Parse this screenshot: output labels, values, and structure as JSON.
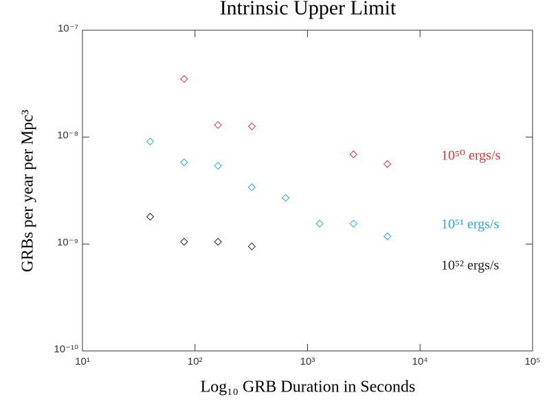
{
  "chart_data": {
    "type": "scatter",
    "title": "Intrinsic Upper Limit",
    "x_label": "Log₁₀ GRB Duration in Seconds",
    "y_label": "GRBs per year per Mpc³",
    "x_scale": "log",
    "y_scale": "log",
    "xlim": [
      10,
      100000
    ],
    "ylim": [
      1e-10,
      1e-07
    ],
    "xticks": [
      {
        "value": 10,
        "label": "10¹"
      },
      {
        "value": 100,
        "label": "10²"
      },
      {
        "value": 1000,
        "label": "10³"
      },
      {
        "value": 10000,
        "label": "10⁴"
      },
      {
        "value": 100000,
        "label": "10⁵"
      }
    ],
    "yticks": [
      {
        "value": 1e-10,
        "label": "10⁻¹⁰"
      },
      {
        "value": 1e-09,
        "label": "10⁻⁹"
      },
      {
        "value": 1e-08,
        "label": "10⁻⁸"
      },
      {
        "value": 1e-07,
        "label": "10⁻⁷"
      }
    ],
    "series": [
      {
        "name": "10⁵⁰ ergs/s",
        "color": "#e8312f",
        "x": [
          80,
          160,
          320,
          2560,
          5120
        ],
        "values": [
          3.5e-08,
          1.3e-08,
          1.26e-08,
          6.9e-09,
          5.6e-09
        ]
      },
      {
        "name": "10⁵¹ ergs/s",
        "color": "#27a3ef",
        "x": [
          40,
          80,
          160,
          320,
          640,
          1280,
          2560,
          5120
        ],
        "values": [
          9.1e-09,
          5.8e-09,
          5.4e-09,
          3.4e-09,
          2.7e-09,
          1.55e-09,
          1.55e-09,
          1.18e-09
        ]
      },
      {
        "name": "10⁵² ergs/s",
        "color": "#222222",
        "x": [
          40,
          80,
          160,
          320
        ],
        "values": [
          1.8e-09,
          1.05e-09,
          1.05e-09,
          9.5e-10
        ]
      }
    ]
  }
}
